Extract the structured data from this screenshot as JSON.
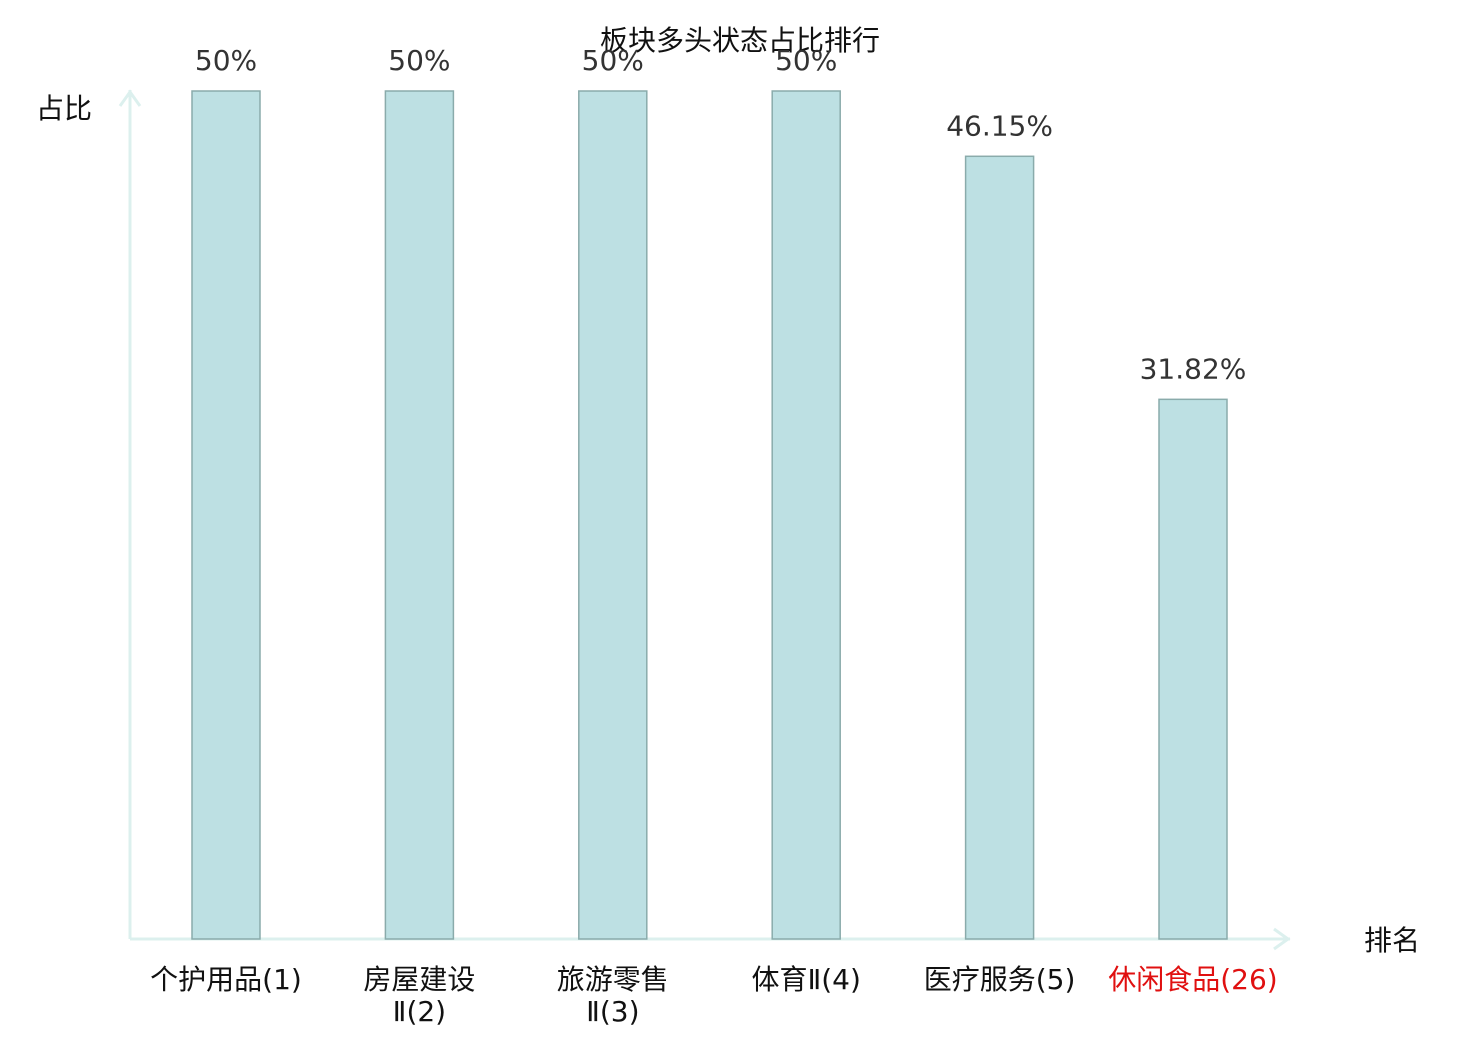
{
  "chart_data": {
    "type": "bar",
    "title": "板块多头状态占比排行",
    "y_label": "占比",
    "x_label": "排名",
    "categories": [
      "个护用品(1)",
      "房屋建设\nⅡ(2)",
      "旅游零售\nⅡ(3)",
      "体育Ⅱ(4)",
      "医疗服务(5)",
      "休闲食品(26)"
    ],
    "category_label_colors": [
      "#111111",
      "#111111",
      "#111111",
      "#111111",
      "#111111",
      "#e01010"
    ],
    "values": [
      50,
      50,
      50,
      50,
      46.15,
      31.82
    ],
    "value_labels": [
      "50%",
      "50%",
      "50%",
      "50%",
      "46.15%",
      "31.82%"
    ],
    "color": "#bde0e3",
    "edge_color": "#8aabab",
    "axis_color": "#dcf0ee",
    "ylim": [
      0,
      50
    ]
  }
}
